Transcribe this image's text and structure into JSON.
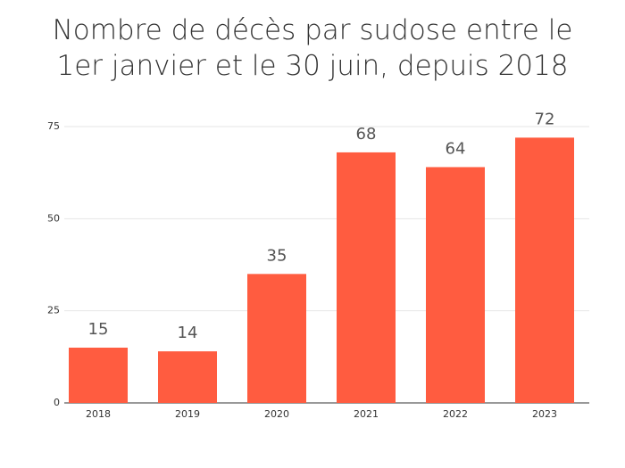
{
  "chart_data": {
    "type": "bar",
    "title": "Nombre de décès par sudose entre le 1er janvier et le 30 juin, depuis 2018",
    "categories": [
      "2018",
      "2019",
      "2020",
      "2021",
      "2022",
      "2023"
    ],
    "values": [
      15,
      14,
      35,
      68,
      64,
      72
    ],
    "color": "#ff5c40",
    "ylim": [
      0,
      75
    ],
    "yticks": [
      0,
      25,
      50,
      75
    ],
    "grid": true
  }
}
